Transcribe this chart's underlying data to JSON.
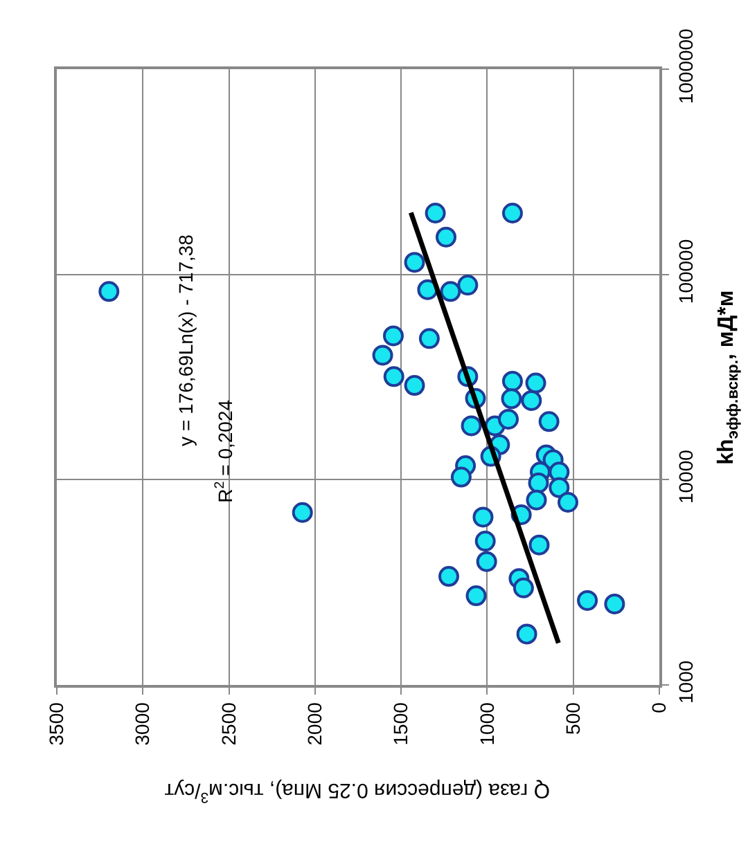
{
  "chart_data": {
    "type": "scatter",
    "xlabel": "Q газа (депрессия 0.25 Мпа), тыс.м$^{3}$/сут",
    "ylabel": "kh$_{эфф.вскр.}$, мД*м",
    "xlim": [
      3500,
      0
    ],
    "xticks": [
      0,
      500,
      1000,
      1500,
      2000,
      2500,
      3000,
      3500
    ],
    "ylim": [
      1000,
      1000000
    ],
    "yticks": [
      1000,
      10000,
      100000,
      1000000
    ],
    "log": "y",
    "grid": true,
    "series": [
      {
        "color": "#19e6f0",
        "marker": "circle",
        "x": [
          1301,
          853,
          1239,
          1422,
          1346,
          1213,
          1113,
          3197,
          1545,
          1336,
          1607,
          1542,
          1422,
          1113,
          1068,
          853,
          718,
          859,
          743,
          1092,
          955,
          877,
          641,
          928,
          979,
          1126,
          1151,
          657,
          617,
          692,
          582,
          702,
          582,
          714,
          531,
          2073,
          1024,
          802,
          1011,
          698,
          1003,
          1223,
          815,
          789,
          1064,
          418,
          260,
          770
        ],
        "values": [
          199000,
          199000,
          152000,
          114500,
          84300,
          82600,
          88700,
          82600,
          50200,
          48700,
          40400,
          31800,
          28800,
          31800,
          24900,
          30200,
          29600,
          24800,
          24300,
          18300,
          18300,
          19700,
          19200,
          14800,
          13000,
          11700,
          10300,
          13200,
          12500,
          10900,
          10900,
          9650,
          9150,
          7960,
          7760,
          6920,
          6570,
          6750,
          5020,
          4810,
          3990,
          3380,
          3300,
          2970,
          2720,
          2580,
          2480,
          1770
        ]
      },
      {
        "type": "line",
        "marker": "none",
        "color": "#000000",
        "x": [
          1443,
          586
        ],
        "values": [
          200000,
          1600
        ]
      }
    ],
    "annotations": [
      "y = 176,69Ln(x) - 717,38",
      "R$^{2}$ = 0,2024"
    ]
  }
}
